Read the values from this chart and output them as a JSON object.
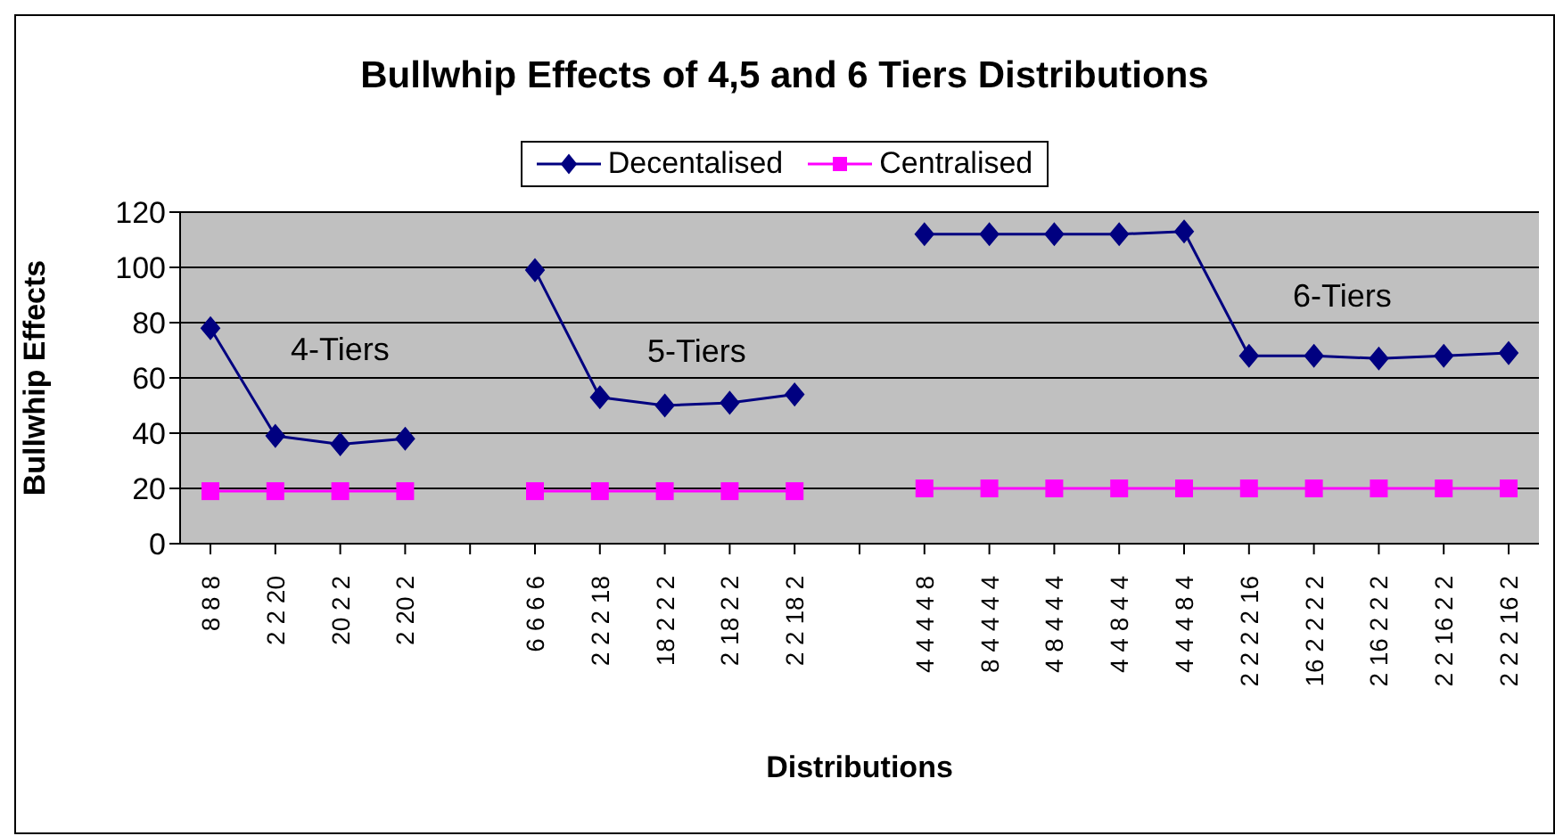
{
  "chart_data": {
    "type": "line",
    "title": "Bullwhip Effects of 4,5 and 6 Tiers Distributions",
    "xlabel": "Distributions",
    "ylabel": "Bullwhip Effects",
    "categories": [
      "8 8 8",
      "2 2 20",
      "20 2 2",
      "2 20 2",
      null,
      "6 6 6 6",
      "2 2 2 18",
      "18 2 2 2",
      "2 18 2 2",
      "2 2 18 2",
      null,
      "4 4 4 4 8",
      "8 4 4 4 4",
      "4 8 4 4 4",
      "4 4 8 4 4",
      "4 4 4 8 4",
      "2 2 2 2 16",
      "16 2 2 2 2",
      "2 16 2 2 2",
      "2 2 16 2 2",
      "2 2 2 16 2"
    ],
    "series": [
      {
        "name": "Decentalised",
        "color": "#000080",
        "marker": "diamond",
        "values": [
          78,
          39,
          36,
          38,
          null,
          99,
          53,
          50,
          51,
          54,
          null,
          112,
          112,
          112,
          112,
          113,
          68,
          68,
          67,
          68,
          69
        ]
      },
      {
        "name": "Centralised",
        "color": "#ff00ff",
        "marker": "square",
        "values": [
          19,
          19,
          19,
          19,
          null,
          19,
          19,
          19,
          19,
          19,
          null,
          20,
          20,
          20,
          20,
          20,
          20,
          20,
          20,
          20,
          20
        ]
      }
    ],
    "ylim": [
      0,
      120
    ],
    "yticks": [
      0,
      20,
      40,
      60,
      80,
      100,
      120
    ],
    "grid": "y",
    "legend": "top",
    "annotations": [
      "4-Tiers",
      "5-Tiers",
      "6-Tiers"
    ]
  }
}
